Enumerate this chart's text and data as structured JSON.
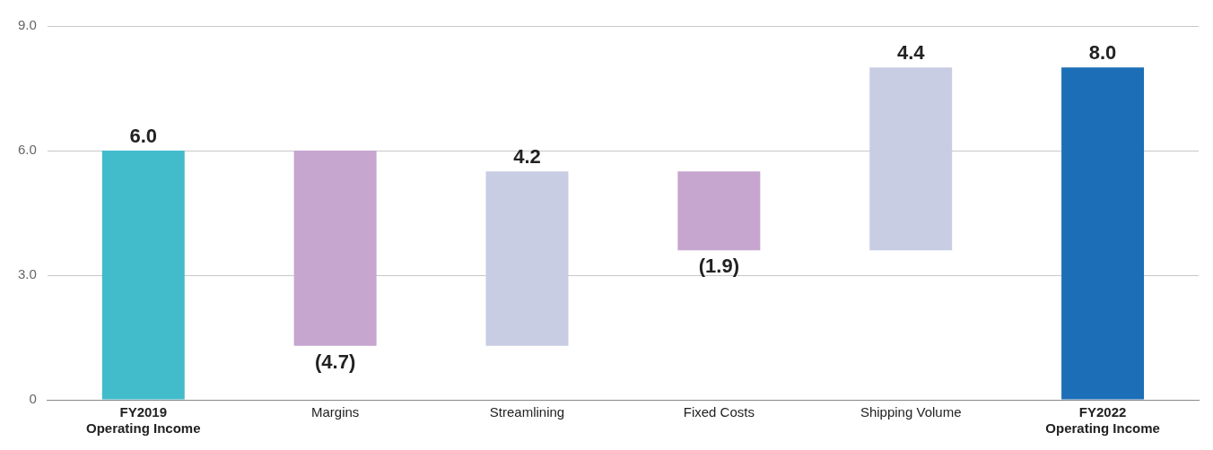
{
  "chart_data": {
    "type": "bar",
    "categories": [
      "FY2019\nOperating Income",
      "Margins",
      "Streamlining",
      "Fixed Costs",
      "Shipping Volume",
      "FY2022\nOperating Income"
    ],
    "values": [
      6.0,
      -4.7,
      4.2,
      -1.9,
      4.4,
      8.0
    ],
    "base": [
      0,
      6.0,
      1.3,
      5.5,
      3.6,
      0
    ],
    "colors": [
      "#42bccb",
      "#c6a5cf",
      "#c8cde3",
      "#c6a5cf",
      "#c8cde3",
      "#1c6fb6"
    ],
    "value_labels": [
      "6.0",
      "(4.7)",
      "4.2",
      "(1.9)",
      "4.4",
      "8.0"
    ],
    "ylim": [
      0,
      9
    ],
    "yticks": [
      {
        "value": 0,
        "label": "0"
      },
      {
        "value": 3,
        "label": "3.0"
      },
      {
        "value": 6,
        "label": "6.0"
      },
      {
        "value": 9,
        "label": "9.0"
      }
    ],
    "grid": "y",
    "legend": false
  }
}
